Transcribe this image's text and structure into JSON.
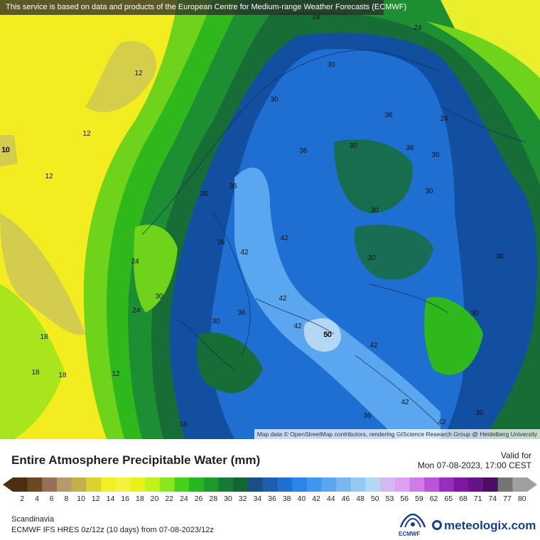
{
  "banner_text": "This service is based on data and products of the European Centre for Medium-range Weather Forecasts (ECMWF)",
  "attribution": "Map data © OpenStreetMap contributors, rendering GIScience Research Group @ Heidelberg University",
  "title": "Entire Atmosphere Precipitable Water (mm)",
  "valid_label": "Valid for",
  "valid_time": "Mon 07-08-2023, 17:00 CEST",
  "region": "Scandinavia",
  "model_info": "ECMWF IFS HRES 0z/12z (10 days) from 07-08-2023/12z",
  "ecmwf_logo_text": "ECMWF",
  "brand": "meteologix.com",
  "legend": {
    "ticks": [
      "2",
      "4",
      "6",
      "8",
      "10",
      "12",
      "14",
      "16",
      "18",
      "20",
      "22",
      "24",
      "26",
      "28",
      "30",
      "32",
      "34",
      "36",
      "38",
      "40",
      "42",
      "44",
      "46",
      "48",
      "50",
      "53",
      "56",
      "59",
      "62",
      "65",
      "68",
      "71",
      "74",
      "77",
      "80"
    ],
    "colors": [
      "#4a2f10",
      "#6b4a22",
      "#9a6f5a",
      "#b89a6a",
      "#c4b048",
      "#d9d330",
      "#f3f021",
      "#f6f23f",
      "#e6f21a",
      "#bff21d",
      "#87e61c",
      "#47d11a",
      "#25b81e",
      "#1e9a2c",
      "#17793a",
      "#126633",
      "#1a4e85",
      "#1c5fb0",
      "#1f70d3",
      "#2a84ea",
      "#3f96ef",
      "#5aa7ef",
      "#78b8ef",
      "#96c9f1",
      "#b4d8f4",
      "#d3b8f4",
      "#dba0f0",
      "#d07ce8",
      "#bb55d8",
      "#9a2fbf",
      "#7e18a0",
      "#651485",
      "#4a0f60",
      "#747474",
      "#a0a0a0"
    ]
  },
  "contour_labels": [
    "24",
    "24",
    "12",
    "30",
    "12",
    "30",
    "36",
    "24",
    "10",
    "30",
    "12",
    "36",
    "36",
    "36",
    "36",
    "30",
    "30",
    "30",
    "42",
    "42",
    "36",
    "30",
    "24",
    "36",
    "42",
    "30",
    "36",
    "24",
    "42",
    "30",
    "50",
    "42",
    "18",
    "30",
    "18",
    "12",
    "42",
    "36",
    "42",
    "18",
    "18",
    "30"
  ]
}
